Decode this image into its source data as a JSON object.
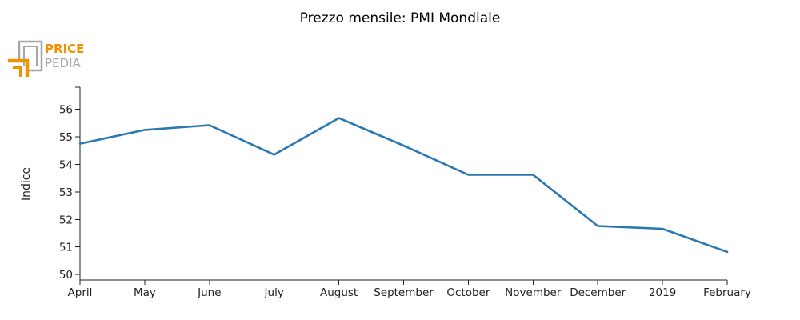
{
  "chart_data": {
    "type": "line",
    "title": "Prezzo mensile: PMI Mondiale",
    "xlabel": "",
    "ylabel": "Indice",
    "categories": [
      "April",
      "May",
      "June",
      "July",
      "August",
      "September",
      "October",
      "November",
      "December",
      "2019",
      "February"
    ],
    "series": [
      {
        "values": [
          54.75,
          55.25,
          55.42,
          54.35,
          55.68,
          54.68,
          53.62,
          53.62,
          51.76,
          51.66,
          50.82
        ]
      }
    ],
    "ylim": [
      49.8,
      56.8
    ],
    "yticks": [
      50,
      51,
      52,
      53,
      54,
      55,
      56
    ],
    "grid": false,
    "legend": "none"
  },
  "logo": {
    "line1": "PRICE",
    "line2": "PEDIA"
  },
  "colors": {
    "series": "#2a77b2",
    "logo_accent": "#f29100",
    "logo_gray": "#a6a6a6"
  }
}
